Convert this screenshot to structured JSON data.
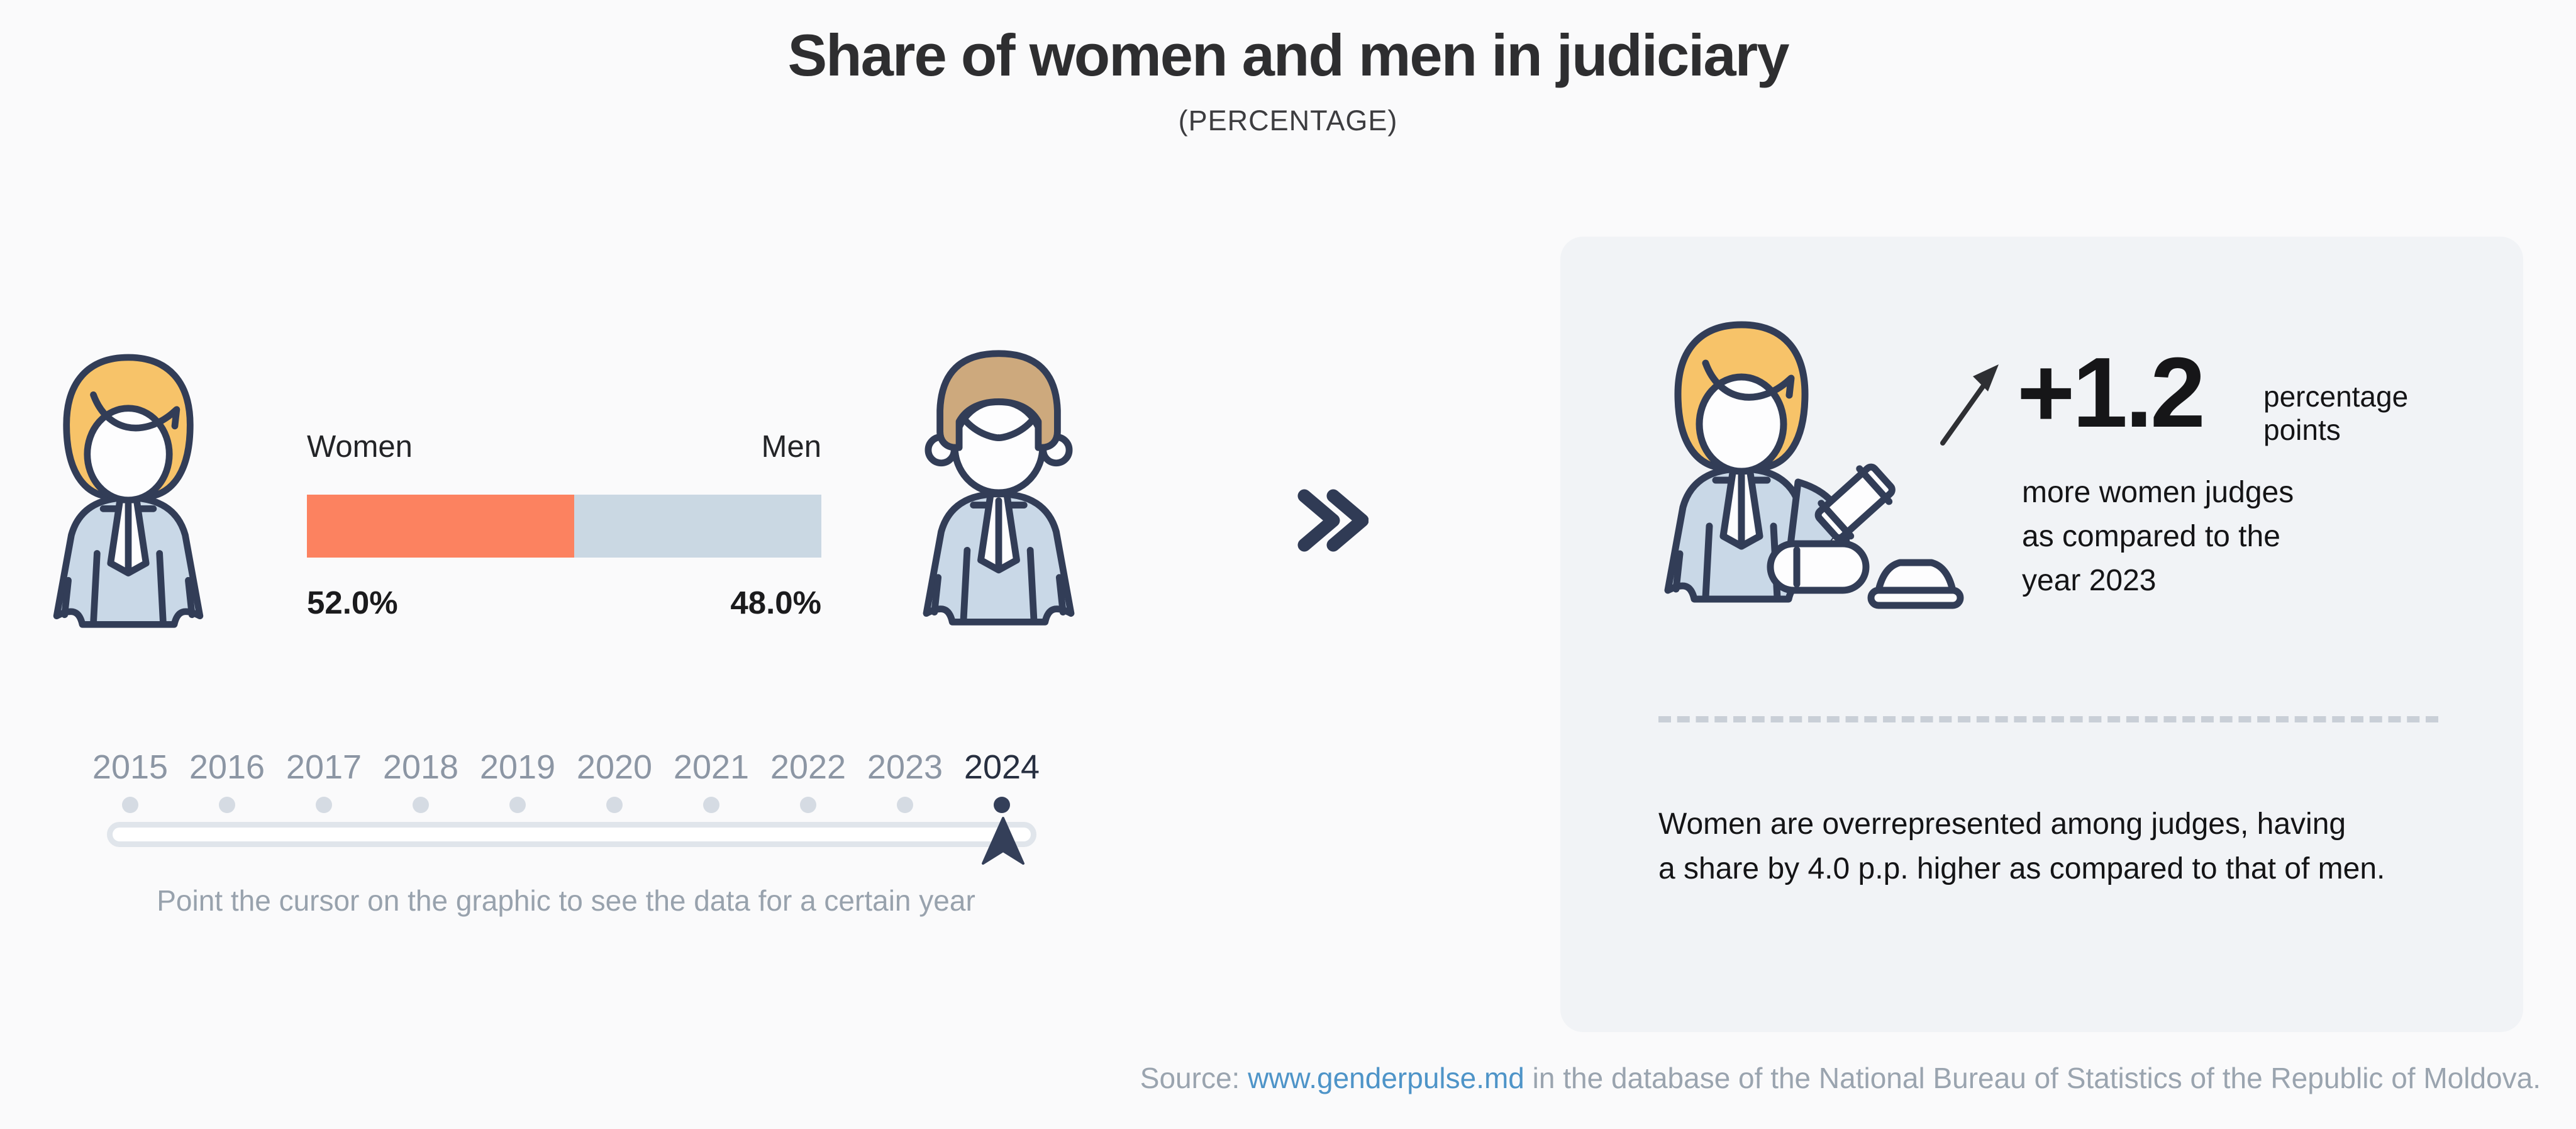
{
  "header": {
    "title": "Share of women and men in judiciary",
    "subtitle": "(PERCENTAGE)"
  },
  "bar_chart": {
    "women_label": "Women",
    "men_label": "Men",
    "women_value_label": "52.0%",
    "men_value_label": "48.0%",
    "women_color": "#FC8260",
    "men_color": "#CAD8E3"
  },
  "timeline": {
    "years": [
      "2015",
      "2016",
      "2017",
      "2018",
      "2019",
      "2020",
      "2021",
      "2022",
      "2023",
      "2024"
    ],
    "selected_year": "2024",
    "hint": "Point the cursor on the graphic to see the data for a certain year"
  },
  "panel": {
    "delta_value": "+1.2",
    "delta_unit": "percentage points",
    "delta_lines": [
      "more women judges",
      "as compared to the",
      "year 2023"
    ],
    "note_lines": [
      "Women are overrepresented among judges, having",
      "a share by 4.0 p.p. higher as compared to that of men."
    ]
  },
  "footer": {
    "source_prefix": "Source: ",
    "link_text": "www.genderpulse.md",
    "source_suffix": " in the database of the National Bureau of Statistics of the Republic of Moldova.",
    "link_color": "#4E94C8"
  },
  "colors": {
    "page_background": "#FAFAFB",
    "panel_background": "#F1F3F6",
    "outline_navy": "#323D57",
    "year_gray": "#8C96A4",
    "selected_year": "#272F40"
  },
  "chart_data": {
    "type": "bar",
    "subtype": "stacked-100-percent",
    "title": "Share of women and men in judiciary",
    "unit": "percentage",
    "selected_year": "2024",
    "categories": [
      "Women",
      "Men"
    ],
    "values": [
      52.0,
      48.0
    ],
    "series_colors": [
      "#FC8260",
      "#CAD8E3"
    ],
    "x_axis_years": [
      "2015",
      "2016",
      "2017",
      "2018",
      "2019",
      "2020",
      "2021",
      "2022",
      "2023",
      "2024"
    ],
    "legend_position": "above-bar",
    "annotations": {
      "change_vs_previous_year_pp": 1.2,
      "change_text": "+1.2 percentage points more women judges as compared to the year 2023",
      "gap_pp": 4.0,
      "gap_text": "Women are overrepresented among judges, having a share by 4.0 p.p. higher as compared to that of men."
    }
  }
}
